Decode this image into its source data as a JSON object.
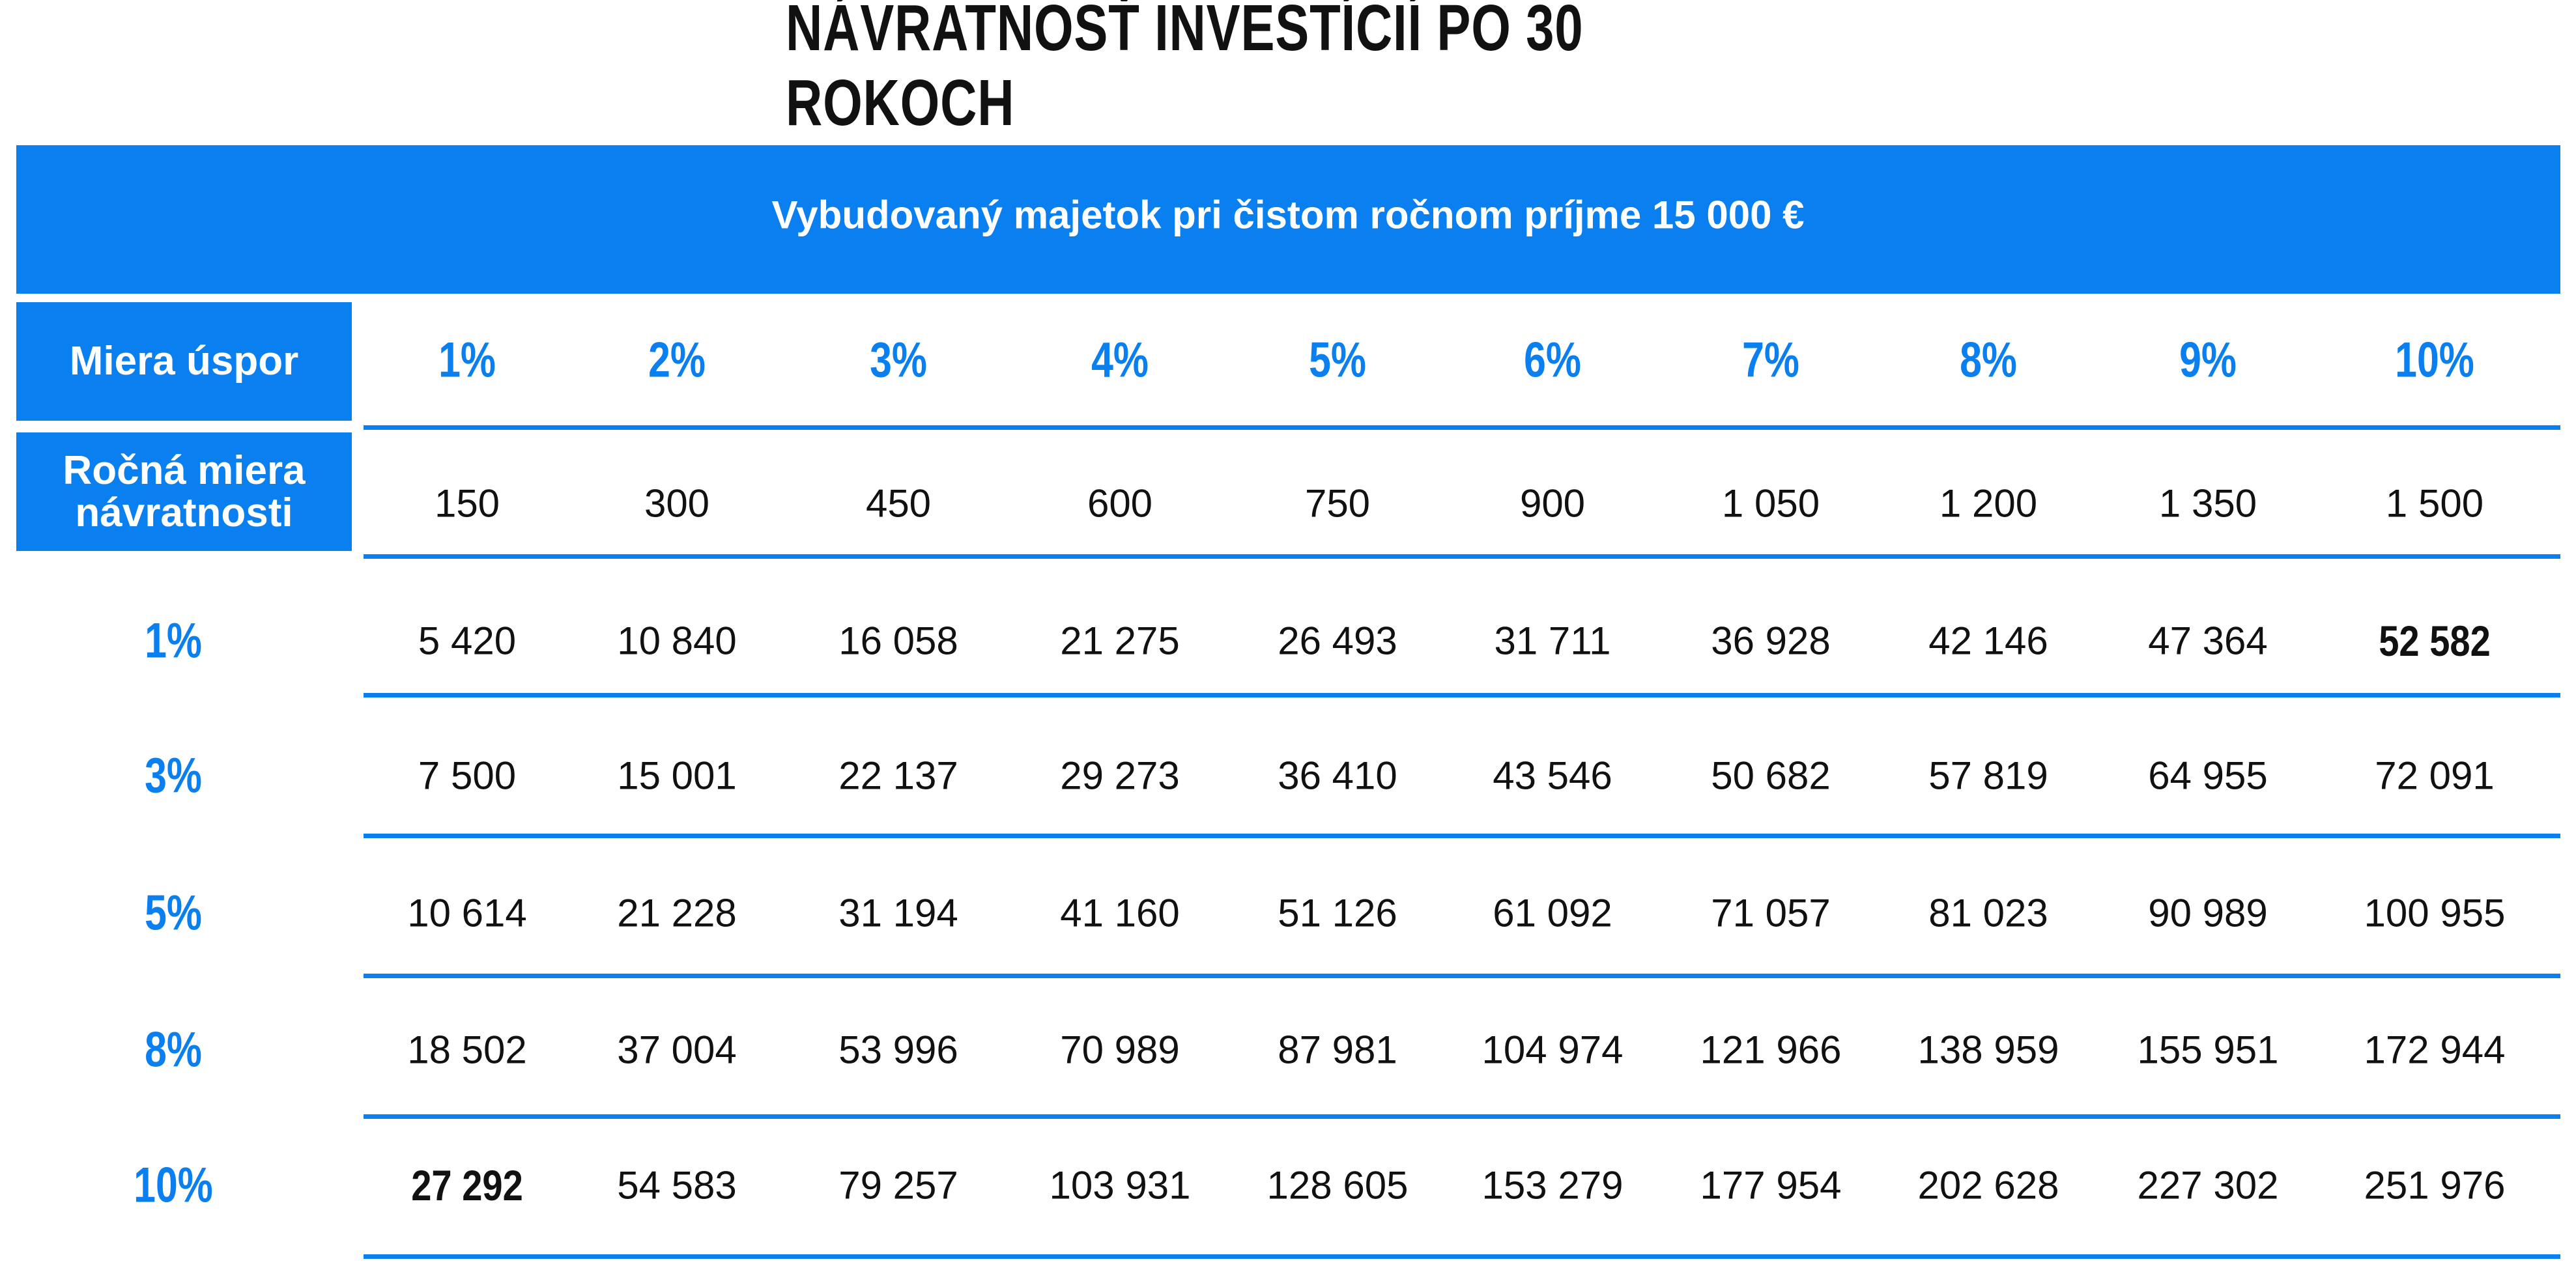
{
  "title": "NÁVRATNOSŤ INVESTÍCIÍ PO 30 ROKOCH",
  "subtitle": "Vybudovaný majetok pri čistom ročnom príjme 15 000 €",
  "table": {
    "corner_label": "Miera úspor",
    "columns": [
      "1%",
      "2%",
      "3%",
      "4%",
      "5%",
      "6%",
      "7%",
      "8%",
      "9%",
      "10%"
    ],
    "savings_label": "Ročná miera návratnosti",
    "savings": [
      "150",
      "300",
      "450",
      "600",
      "750",
      "900",
      "1 050",
      "1 200",
      "1 350",
      "1 500"
    ],
    "rows": [
      {
        "label": "1%",
        "cells": [
          "5 420",
          "10 840",
          "16 058",
          "21 275",
          "26 493",
          "31 711",
          "36 928",
          "42 146",
          "47 364",
          "52 582"
        ]
      },
      {
        "label": "3%",
        "cells": [
          "7 500",
          "15 001",
          "22 137",
          "29 273",
          "36 410",
          "43 546",
          "50 682",
          "57 819",
          "64 955",
          "72 091"
        ]
      },
      {
        "label": "5%",
        "cells": [
          "10 614",
          "21 228",
          "31 194",
          "41 160",
          "51 126",
          "61 092",
          "71 057",
          "81 023",
          "90 989",
          "100 955"
        ]
      },
      {
        "label": "8%",
        "cells": [
          "18 502",
          "37 004",
          "53 996",
          "70 989",
          "87 981",
          "104 974",
          "121 966",
          "138 959",
          "155 951",
          "172 944"
        ]
      },
      {
        "label": "10%",
        "cells": [
          "27 292",
          "54 583",
          "79 257",
          "103 931",
          "128 605",
          "153 279",
          "177 954",
          "202 628",
          "227 302",
          "251 976"
        ]
      }
    ]
  }
}
